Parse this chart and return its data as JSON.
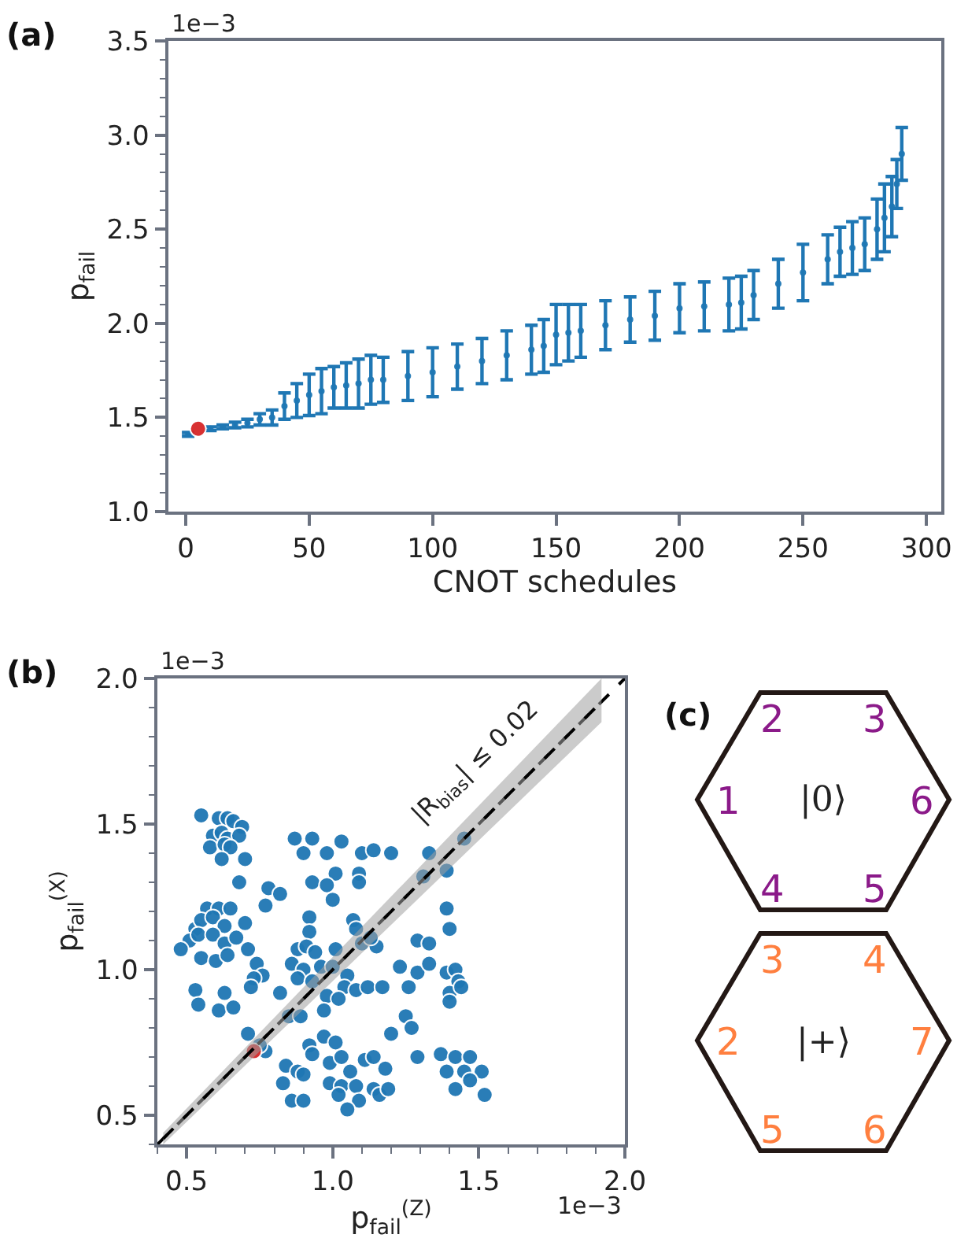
{
  "chart_data": [
    {
      "type": "scatter",
      "title": "(a)",
      "xlabel": "CNOT schedules",
      "ylabel": "p$_{fail}$",
      "annotations": [
        "1e−3"
      ],
      "series": [
        {
          "color": "#1f77b4",
          "marker": "circle",
          "x": [
            1,
            10,
            15,
            20,
            25,
            30,
            35,
            40,
            45,
            50,
            55,
            60,
            65,
            70,
            75,
            80,
            90,
            100,
            110,
            120,
            130,
            140,
            145,
            150,
            155,
            160,
            170,
            180,
            190,
            200,
            210,
            220,
            225,
            230,
            240,
            250,
            260,
            265,
            270,
            275,
            280,
            283,
            286,
            288,
            290
          ],
          "values": [
            1.41,
            1.44,
            1.45,
            1.46,
            1.47,
            1.49,
            1.5,
            1.56,
            1.59,
            1.62,
            1.64,
            1.66,
            1.67,
            1.68,
            1.7,
            1.7,
            1.72,
            1.74,
            1.77,
            1.8,
            1.83,
            1.86,
            1.88,
            1.94,
            1.95,
            1.96,
            1.99,
            2.02,
            2.04,
            2.08,
            2.09,
            2.1,
            2.11,
            2.15,
            2.21,
            2.27,
            2.34,
            2.38,
            2.4,
            2.42,
            2.5,
            2.56,
            2.62,
            2.74,
            2.9
          ],
          "errors": [
            0.01,
            0.01,
            0.01,
            0.015,
            0.02,
            0.03,
            0.04,
            0.07,
            0.09,
            0.11,
            0.12,
            0.11,
            0.12,
            0.13,
            0.13,
            0.12,
            0.13,
            0.13,
            0.12,
            0.12,
            0.13,
            0.13,
            0.14,
            0.16,
            0.15,
            0.14,
            0.13,
            0.12,
            0.13,
            0.13,
            0.13,
            0.14,
            0.14,
            0.13,
            0.13,
            0.15,
            0.13,
            0.13,
            0.14,
            0.14,
            0.16,
            0.18,
            0.16,
            0.13,
            0.14
          ]
        },
        {
          "color": "#d62728",
          "marker": "circle",
          "x": [
            5
          ],
          "values": [
            1.44
          ]
        }
      ],
      "xlim": [
        -7,
        306
      ],
      "xticks": [
        0,
        50,
        100,
        150,
        200,
        250,
        300
      ],
      "ylim": [
        1.0,
        3.5
      ],
      "yticks": [
        {
          "value": 1,
          "label": "1.0"
        },
        {
          "value": 1.1,
          "label": null
        },
        {
          "value": 1.2,
          "label": null
        },
        {
          "value": 1.3,
          "label": null
        },
        {
          "value": 1.4,
          "label": null
        },
        1.5,
        {
          "value": 1.6,
          "label": null
        },
        {
          "value": 1.7,
          "label": null
        },
        {
          "value": 1.8,
          "label": null
        },
        {
          "value": 1.9,
          "label": null
        },
        {
          "value": 2,
          "label": "2.0"
        },
        {
          "value": 2.1,
          "label": null
        },
        {
          "value": 2.2,
          "label": null
        },
        {
          "value": 2.3,
          "label": null
        },
        {
          "value": 2.4,
          "label": null
        },
        2.5,
        {
          "value": 2.6,
          "label": null
        },
        {
          "value": 2.7,
          "label": null
        },
        {
          "value": 2.8,
          "label": null
        },
        {
          "value": 2.9,
          "label": null
        },
        {
          "value": 3,
          "label": "3.0"
        },
        {
          "value": 3.1,
          "label": null
        },
        {
          "value": 3.2,
          "label": null
        },
        {
          "value": 3.3,
          "label": null
        },
        {
          "value": 3.4,
          "label": null
        },
        3.5
      ]
    },
    {
      "type": "scatter",
      "title": "(b)",
      "xlabel": "p$_{fail}$$^{(Z)}$",
      "ylabel": "p$_{fail}$$^{(X)}$",
      "annotations": [
        "1e−3",
        "1e−3",
        "|R$_{bias}$| ≤ 0.02"
      ],
      "series": [
        {
          "color": "#1f77b4",
          "marker": "circle",
          "x": [
            0.55,
            0.61,
            0.64,
            0.66,
            0.69,
            0.59,
            0.62,
            0.64,
            0.68,
            0.58,
            0.63,
            0.65,
            0.62,
            0.7,
            0.68,
            0.57,
            0.61,
            0.65,
            0.53,
            0.55,
            0.59,
            0.63,
            0.7,
            0.51,
            0.54,
            0.59,
            0.63,
            0.67,
            0.71,
            0.48,
            0.55,
            0.6,
            0.64,
            0.74,
            0.76,
            0.73,
            0.72,
            0.53,
            0.54,
            0.63,
            0.61,
            0.66,
            0.87,
            0.93,
            0.9,
            0.98,
            1.03,
            1.1,
            1.14,
            1.2,
            1.01,
            0.93,
            0.98,
            1.09,
            1.09,
            0.78,
            0.82,
            0.77,
            1.0,
            0.92,
            0.92,
            1.07,
            1.08,
            0.88,
            0.91,
            0.94,
            0.86,
            0.9,
            0.96,
            1.01,
            1.0,
            0.88,
            0.93,
            1.05,
            1.1,
            1.15,
            1.13,
            1.04,
            1.08,
            1.12,
            1.17,
            0.98,
            1.02,
            0.82,
            0.85,
            0.89,
            0.97,
            1.39,
            1.4,
            1.29,
            1.33,
            1.23,
            1.29,
            1.33,
            1.26,
            1.39,
            1.42,
            1.43,
            1.4,
            1.44,
            1.4,
            1.33,
            1.31,
            1.39,
            1.45,
            1.25,
            1.27,
            1.2,
            0.71,
            0.77,
            0.75,
            0.92,
            0.97,
            1.01,
            0.93,
            0.84,
            0.88,
            0.9,
            0.83,
            0.86,
            0.9,
            0.99,
            1.03,
            1.06,
            1.11,
            1.14,
            1.18,
            0.99,
            1.03,
            1.08,
            1.14,
            1.02,
            1.09,
            1.16,
            1.05,
            1.19,
            1.37,
            1.42,
            1.47,
            1.39,
            1.45,
            1.51,
            1.42,
            1.47,
            1.52,
            1.29
          ],
          "values": [
            1.53,
            1.52,
            1.52,
            1.51,
            1.49,
            1.46,
            1.47,
            1.45,
            1.46,
            1.42,
            1.43,
            1.42,
            1.38,
            1.38,
            1.3,
            1.21,
            1.21,
            1.21,
            1.14,
            1.17,
            1.18,
            1.15,
            1.16,
            1.1,
            1.12,
            1.12,
            1.09,
            1.11,
            1.07,
            1.07,
            1.04,
            1.03,
            1.05,
            1.02,
            0.98,
            0.97,
            0.94,
            0.93,
            0.88,
            0.92,
            0.86,
            0.87,
            1.45,
            1.45,
            1.4,
            1.4,
            1.44,
            1.4,
            1.41,
            1.4,
            1.33,
            1.3,
            1.29,
            1.33,
            1.3,
            1.28,
            1.26,
            1.22,
            1.24,
            1.18,
            1.13,
            1.17,
            1.14,
            1.07,
            1.08,
            1.06,
            1.02,
            1.0,
            1.01,
            1.07,
            1.01,
            0.97,
            0.96,
            0.98,
            1.09,
            1.08,
            1.11,
            0.94,
            0.93,
            0.94,
            0.94,
            0.91,
            0.9,
            0.92,
            0.84,
            0.84,
            0.86,
            1.21,
            1.14,
            1.1,
            1.09,
            1.01,
            0.99,
            1.02,
            0.94,
            0.99,
            1.0,
            0.96,
            0.92,
            0.94,
            0.89,
            1.4,
            1.32,
            1.34,
            1.45,
            0.84,
            0.8,
            0.78,
            0.78,
            0.72,
            0.74,
            0.74,
            0.77,
            0.75,
            0.71,
            0.67,
            0.65,
            0.64,
            0.61,
            0.55,
            0.55,
            0.68,
            0.7,
            0.65,
            0.69,
            0.7,
            0.66,
            0.61,
            0.6,
            0.6,
            0.59,
            0.57,
            0.55,
            0.57,
            0.52,
            0.59,
            0.71,
            0.7,
            0.7,
            0.65,
            0.65,
            0.65,
            0.59,
            0.62,
            0.57,
            0.7
          ]
        },
        {
          "color": "#d62728",
          "marker": "circle",
          "x": [
            0.73
          ],
          "values": [
            0.72
          ]
        },
        {
          "type": "line",
          "color": "#000000",
          "line_style": "dashed",
          "x": [
            0.4,
            2.0
          ],
          "values": [
            0.4,
            2.0
          ]
        },
        {
          "type": "line",
          "color": "#000000",
          "line_style": "dashed",
          "x": [
            0.42,
            1.92
          ],
          "values": [
            0.42,
            1.92
          ],
          "lower": [
            0.4,
            1.85
          ],
          "upper": [
            0.44,
            2.0
          ]
        }
      ],
      "xlim": [
        0.4,
        2.0
      ],
      "xticks": [
        {
          "value": 0.4,
          "label": null
        },
        0.5,
        {
          "value": 0.6,
          "label": null
        },
        {
          "value": 0.7,
          "label": null
        },
        {
          "value": 0.8,
          "label": null
        },
        {
          "value": 0.9,
          "label": null
        },
        {
          "value": 1,
          "label": "1.0"
        },
        {
          "value": 1.1,
          "label": null
        },
        {
          "value": 1.2,
          "label": null
        },
        {
          "value": 1.3,
          "label": null
        },
        {
          "value": 1.4,
          "label": null
        },
        1.5,
        {
          "value": 1.6,
          "label": null
        },
        {
          "value": 1.7,
          "label": null
        },
        {
          "value": 1.8,
          "label": null
        },
        {
          "value": 1.9,
          "label": null
        },
        {
          "value": 2,
          "label": "2.0"
        }
      ],
      "ylim": [
        0.4,
        2.0
      ],
      "yticks": [
        {
          "value": 0.4,
          "label": null
        },
        0.5,
        {
          "value": 0.6,
          "label": null
        },
        {
          "value": 0.7,
          "label": null
        },
        {
          "value": 0.8,
          "label": null
        },
        {
          "value": 0.9,
          "label": null
        },
        {
          "value": 1,
          "label": "1.0"
        },
        {
          "value": 1.1,
          "label": null
        },
        {
          "value": 1.2,
          "label": null
        },
        {
          "value": 1.3,
          "label": null
        },
        {
          "value": 1.4,
          "label": null
        },
        1.5,
        {
          "value": 1.6,
          "label": null
        },
        {
          "value": 1.7,
          "label": null
        },
        {
          "value": 1.8,
          "label": null
        },
        {
          "value": 1.9,
          "label": null
        },
        {
          "value": 2,
          "label": "2.0"
        }
      ]
    },
    {
      "type": "other",
      "title": "(c)",
      "annotations": [
        "2",
        "3",
        "1",
        "|0⟩",
        "6",
        "4",
        "5",
        "3",
        "4",
        "2",
        "|+⟩",
        "7",
        "5",
        "6"
      ],
      "colors": [
        "#8b1a89",
        "#ff7f3f"
      ]
    }
  ]
}
